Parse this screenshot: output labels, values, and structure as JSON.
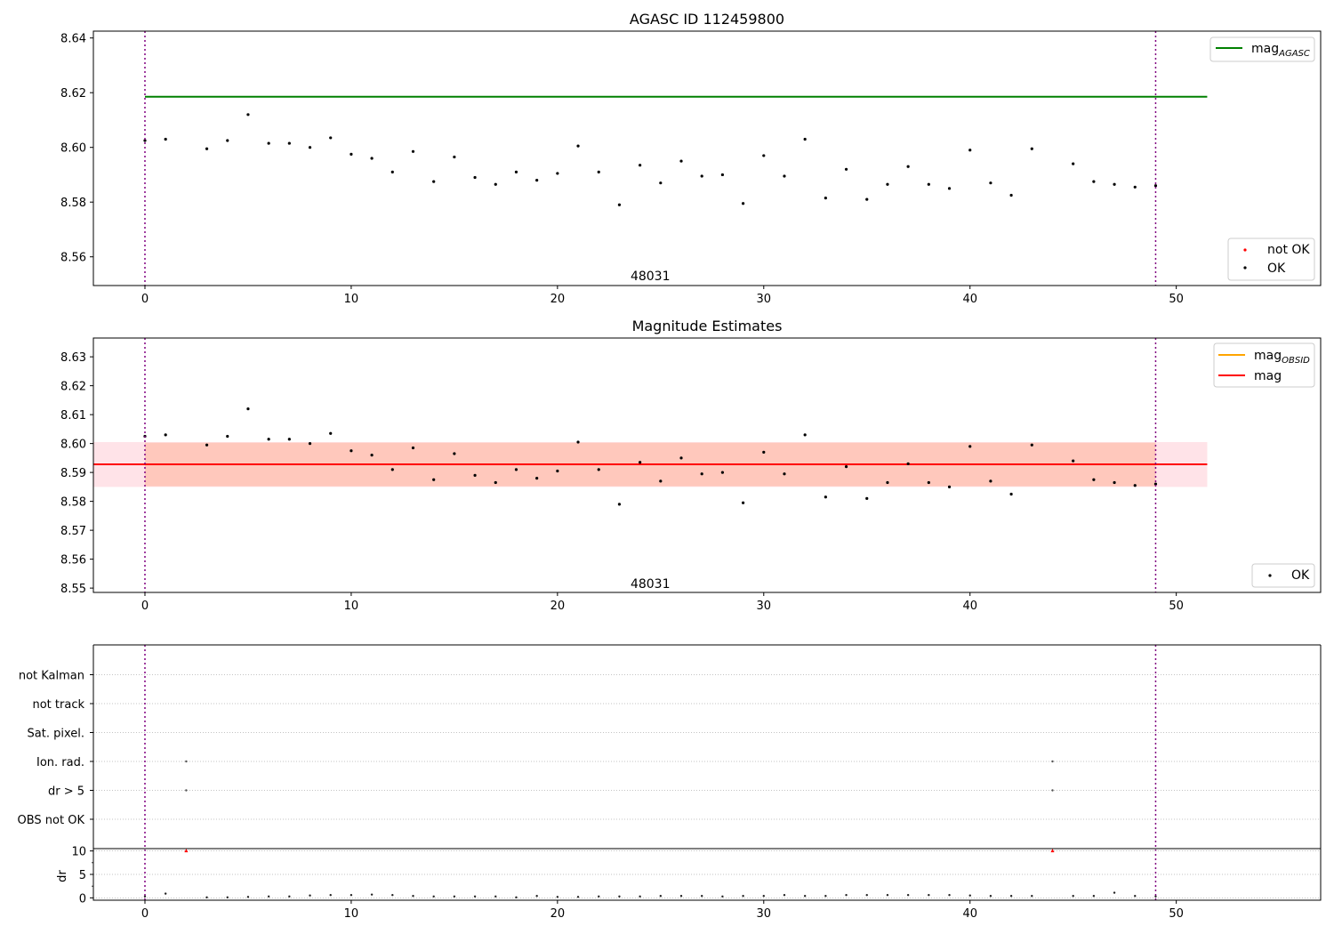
{
  "colors": {
    "ok": "#000000",
    "not_ok": "#ff0000",
    "mag_agasc": "#008000",
    "mag_obsid": "#ffa500",
    "mag": "#ff0000",
    "mag_band": "#ffc0cb",
    "obsid_band": "#ffa07a",
    "obs_boundary": "#800080"
  },
  "chart_data": [
    {
      "type": "scatter",
      "title": "AGASC ID 112459800",
      "xlim": [
        -2.5,
        57
      ],
      "ylim": [
        8.5495,
        8.6425
      ],
      "xticks": [
        0,
        10,
        20,
        30,
        40,
        50
      ],
      "yticks": [
        8.56,
        8.58,
        8.6,
        8.62,
        8.64
      ],
      "xticklabels": [
        "0",
        "10",
        "20",
        "30",
        "40",
        "50"
      ],
      "yticklabels": [
        "8.56",
        "8.58",
        "8.60",
        "8.62",
        "8.64"
      ],
      "grid": false,
      "obs_boundaries": [
        0,
        49
      ],
      "annotation": {
        "text": "48031",
        "x": 24.5,
        "y": 8.5515
      },
      "lines": [
        {
          "name": "mag_AGASC",
          "name_main": "mag",
          "name_sub": "AGASC",
          "y": 8.6185,
          "x": [
            0,
            51.5
          ],
          "color": "#008000"
        }
      ],
      "series": [
        {
          "name": "not OK",
          "x": [],
          "y": [],
          "color": "#ff0000"
        },
        {
          "name": "OK",
          "color": "#000000",
          "x": [
            0,
            1,
            3,
            4,
            5,
            6,
            7,
            8,
            9,
            10,
            11,
            12,
            13,
            14,
            15,
            16,
            17,
            18,
            19,
            20,
            21,
            22,
            23,
            24,
            25,
            26,
            27,
            28,
            29,
            30,
            31,
            32,
            33,
            34,
            35,
            36,
            37,
            38,
            39,
            40,
            41,
            42,
            43,
            45,
            46,
            47,
            48,
            49
          ],
          "y": [
            8.6025,
            8.603,
            8.5995,
            8.6025,
            8.612,
            8.6015,
            8.6015,
            8.6,
            8.6035,
            8.5975,
            8.596,
            8.591,
            8.5985,
            8.5875,
            8.5965,
            8.589,
            8.5865,
            8.591,
            8.588,
            8.5905,
            8.6005,
            8.591,
            8.579,
            8.5935,
            8.587,
            8.595,
            8.5895,
            8.59,
            8.5795,
            8.597,
            8.5895,
            8.603,
            8.5815,
            8.592,
            8.581,
            8.5865,
            8.593,
            8.5865,
            8.585,
            8.599,
            8.587,
            8.5825,
            8.5995,
            8.594,
            8.5875,
            8.5865,
            8.5855,
            8.586
          ]
        }
      ],
      "legends": [
        {
          "position": "upper right",
          "items": [
            {
              "label_main": "mag",
              "label_sub": "AGASC",
              "kind": "line",
              "color": "#008000"
            }
          ]
        },
        {
          "position": "lower right",
          "items": [
            {
              "label": "not OK",
              "kind": "dot",
              "color": "#ff0000"
            },
            {
              "label": "OK",
              "kind": "dot",
              "color": "#000000"
            }
          ]
        }
      ]
    },
    {
      "type": "scatter",
      "title": "Magnitude Estimates",
      "xlim": [
        -2.5,
        57
      ],
      "ylim": [
        8.5485,
        8.6365
      ],
      "xticks": [
        0,
        10,
        20,
        30,
        40,
        50
      ],
      "yticks": [
        8.55,
        8.56,
        8.57,
        8.58,
        8.59,
        8.6,
        8.61,
        8.62,
        8.63
      ],
      "xticklabels": [
        "0",
        "10",
        "20",
        "30",
        "40",
        "50"
      ],
      "yticklabels": [
        "8.55",
        "8.56",
        "8.57",
        "8.58",
        "8.59",
        "8.60",
        "8.61",
        "8.62",
        "8.63"
      ],
      "grid": false,
      "obs_boundaries": [
        0,
        49
      ],
      "annotation": {
        "text": "48031",
        "x": 24.5,
        "y": 8.55
      },
      "bands": [
        {
          "name": "mag range",
          "y0": 8.585,
          "y1": 8.6005,
          "x": [
            -2.5,
            51.5
          ],
          "color": "#ffc0cb",
          "opacity": 0.45
        },
        {
          "name": "OBSID range",
          "y0": 8.5852,
          "y1": 8.6003,
          "x": [
            0,
            49
          ],
          "color": "#ffa07a",
          "opacity": 0.4
        }
      ],
      "lines": [
        {
          "name": "mag_OBSID",
          "y": 8.5928,
          "x": [
            0,
            49
          ],
          "color": "#ffa500"
        },
        {
          "name": "mag",
          "y": 8.5928,
          "x": [
            -2.5,
            51.5
          ],
          "color": "#ff0000"
        }
      ],
      "series": [
        {
          "name": "OK",
          "color": "#000000",
          "x": [
            0,
            1,
            3,
            4,
            5,
            6,
            7,
            8,
            9,
            10,
            11,
            12,
            13,
            14,
            15,
            16,
            17,
            18,
            19,
            20,
            21,
            22,
            23,
            24,
            25,
            26,
            27,
            28,
            29,
            30,
            31,
            32,
            33,
            34,
            35,
            36,
            37,
            38,
            39,
            40,
            41,
            42,
            43,
            45,
            46,
            47,
            48,
            49
          ],
          "y": [
            8.6025,
            8.603,
            8.5995,
            8.6025,
            8.612,
            8.6015,
            8.6015,
            8.6,
            8.6035,
            8.5975,
            8.596,
            8.591,
            8.5985,
            8.5875,
            8.5965,
            8.589,
            8.5865,
            8.591,
            8.588,
            8.5905,
            8.6005,
            8.591,
            8.579,
            8.5935,
            8.587,
            8.595,
            8.5895,
            8.59,
            8.5795,
            8.597,
            8.5895,
            8.603,
            8.5815,
            8.592,
            8.581,
            8.5865,
            8.593,
            8.5865,
            8.585,
            8.599,
            8.587,
            8.5825,
            8.5995,
            8.594,
            8.5875,
            8.5865,
            8.5855,
            8.586
          ]
        }
      ],
      "legends": [
        {
          "position": "upper right",
          "items": [
            {
              "label_main": "mag",
              "label_sub": "OBSID",
              "kind": "line",
              "color": "#ffa500"
            },
            {
              "label": "mag",
              "kind": "line",
              "color": "#ff0000"
            }
          ]
        },
        {
          "position": "lower right",
          "items": [
            {
              "label": "OK",
              "kind": "dot",
              "color": "#000000"
            }
          ]
        }
      ]
    },
    {
      "type": "scatter",
      "title": "",
      "xlim": [
        -2.5,
        57
      ],
      "categories": [
        "OBS not OK",
        "dr > 5",
        "Ion. rad.",
        "Sat. pixel.",
        "not track",
        "not Kalman"
      ],
      "flags": [
        {
          "category": "Ion. rad.",
          "x": [
            2,
            44
          ]
        },
        {
          "category": "dr > 5",
          "x": [
            2,
            44
          ]
        }
      ],
      "obs_boundaries": [
        0,
        49
      ],
      "grid": true
    },
    {
      "type": "scatter",
      "title": "",
      "ylabel": "dr",
      "xlim": [
        -2.5,
        57
      ],
      "ylim": [
        -0.5,
        10.5
      ],
      "xticks": [
        0,
        10,
        20,
        30,
        40,
        50
      ],
      "yticks": [
        0,
        5,
        10
      ],
      "xticklabels": [
        "0",
        "10",
        "20",
        "30",
        "40",
        "50"
      ],
      "yticklabels": [
        "0",
        "5",
        "10"
      ],
      "grid": true,
      "obs_boundaries": [
        0,
        49
      ],
      "series": [
        {
          "name": "dr",
          "color": "#000000",
          "x": [
            0,
            1,
            3,
            4,
            5,
            6,
            7,
            8,
            9,
            10,
            11,
            12,
            13,
            14,
            15,
            16,
            17,
            18,
            19,
            20,
            21,
            22,
            23,
            24,
            25,
            26,
            27,
            28,
            29,
            30,
            31,
            32,
            33,
            34,
            35,
            36,
            37,
            38,
            39,
            40,
            41,
            42,
            43,
            45,
            46,
            47,
            48,
            49
          ],
          "y": [
            0.3,
            0.9,
            0.1,
            0.1,
            0.2,
            0.3,
            0.3,
            0.5,
            0.6,
            0.6,
            0.7,
            0.6,
            0.4,
            0.3,
            0.3,
            0.3,
            0.3,
            0.1,
            0.4,
            0.2,
            0.2,
            0.3,
            0.3,
            0.3,
            0.4,
            0.4,
            0.4,
            0.3,
            0.4,
            0.4,
            0.6,
            0.4,
            0.4,
            0.6,
            0.6,
            0.6,
            0.6,
            0.6,
            0.6,
            0.5,
            0.4,
            0.4,
            0.4,
            0.4,
            0.4,
            1.1,
            0.4,
            0.3
          ]
        },
        {
          "name": "dr clipped",
          "marker": "triangle",
          "color": "#ff0000",
          "x": [
            2,
            44
          ],
          "y": [
            10,
            10
          ]
        }
      ]
    }
  ]
}
